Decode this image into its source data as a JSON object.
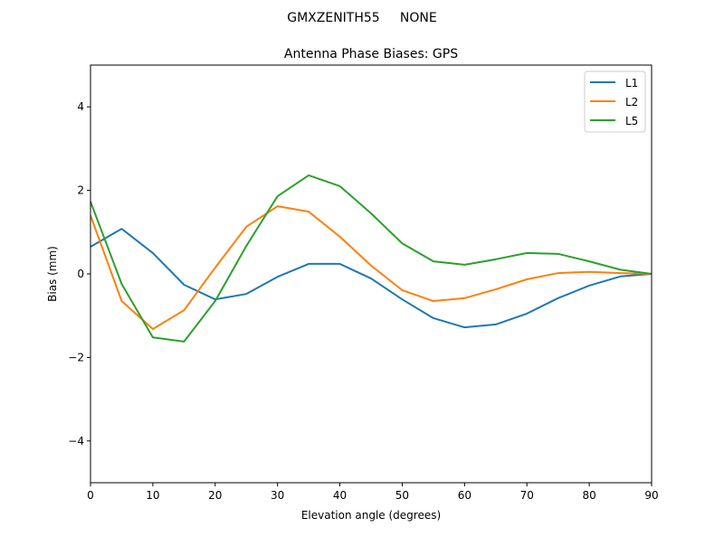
{
  "chart_data": {
    "type": "line",
    "suptitle": "GMXZENITH55     NONE",
    "title": "Antenna Phase Biases: GPS",
    "xlabel": "Elevation angle (degrees)",
    "ylabel": "Bias (mm)",
    "xlim": [
      0,
      90
    ],
    "ylim": [
      -5,
      5
    ],
    "xticks": [
      0,
      10,
      20,
      30,
      40,
      50,
      60,
      70,
      80,
      90
    ],
    "yticks": [
      -4,
      -2,
      0,
      2,
      4
    ],
    "xtick_labels": [
      "0",
      "10",
      "20",
      "30",
      "40",
      "50",
      "60",
      "70",
      "80",
      "90"
    ],
    "ytick_labels": [
      "−4",
      "−2",
      "0",
      "2",
      "4"
    ],
    "grid": false,
    "legend_placement": "top-right",
    "x": [
      0,
      5,
      10,
      15,
      20,
      25,
      30,
      35,
      40,
      45,
      50,
      55,
      60,
      65,
      70,
      75,
      80,
      85,
      90
    ],
    "series": [
      {
        "name": "L1",
        "color": "#1f77b4",
        "values": [
          0.65,
          1.08,
          0.5,
          -0.26,
          -0.61,
          -0.48,
          -0.07,
          0.24,
          0.24,
          -0.11,
          -0.61,
          -1.06,
          -1.28,
          -1.21,
          -0.95,
          -0.58,
          -0.28,
          -0.06,
          0.0
        ]
      },
      {
        "name": "L2",
        "color": "#ff7f0e",
        "values": [
          1.4,
          -0.65,
          -1.32,
          -0.87,
          0.15,
          1.13,
          1.62,
          1.49,
          0.89,
          0.2,
          -0.39,
          -0.65,
          -0.58,
          -0.37,
          -0.13,
          0.02,
          0.05,
          0.02,
          0.0
        ]
      },
      {
        "name": "L5",
        "color": "#2ca02c",
        "values": [
          1.73,
          -0.24,
          -1.52,
          -1.62,
          -0.65,
          0.67,
          1.86,
          2.36,
          2.1,
          1.45,
          0.73,
          0.3,
          0.22,
          0.35,
          0.5,
          0.48,
          0.3,
          0.1,
          0.0
        ]
      }
    ]
  }
}
